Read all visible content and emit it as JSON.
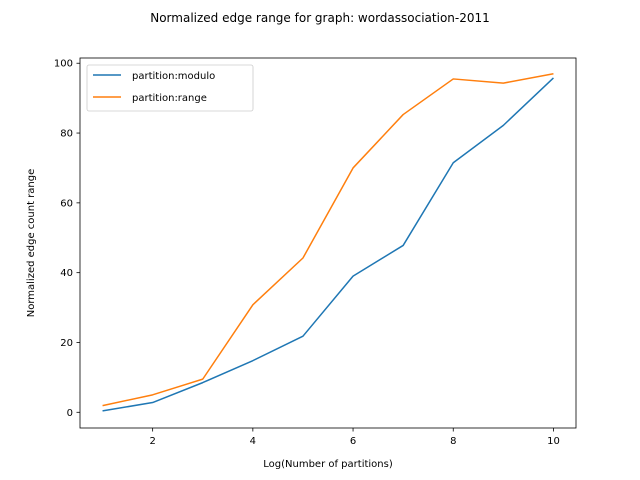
{
  "chart_data": {
    "type": "line",
    "title": "Normalized edge range for graph: wordassociation-2011",
    "xlabel": "Log(Number of partitions)",
    "ylabel": "Normalized edge count range",
    "x": [
      1,
      2,
      3,
      4,
      5,
      6,
      7,
      8,
      9,
      10
    ],
    "xlim": [
      0.55,
      10.45
    ],
    "ylim": [
      -4.5,
      101.5
    ],
    "xticks": [
      2,
      4,
      6,
      8,
      10
    ],
    "yticks": [
      0,
      20,
      40,
      60,
      80,
      100
    ],
    "grid": false,
    "legend_position": "top-left",
    "series": [
      {
        "name": "partition:modulo",
        "color": "#1f77b4",
        "values": [
          0.4,
          2.8,
          8.5,
          14.8,
          21.8,
          39.0,
          47.8,
          71.5,
          82.2,
          95.8
        ]
      },
      {
        "name": "partition:range",
        "color": "#ff7f0e",
        "values": [
          1.9,
          5.0,
          9.5,
          30.8,
          44.2,
          70.0,
          85.3,
          95.5,
          94.3,
          97.0
        ]
      }
    ]
  }
}
